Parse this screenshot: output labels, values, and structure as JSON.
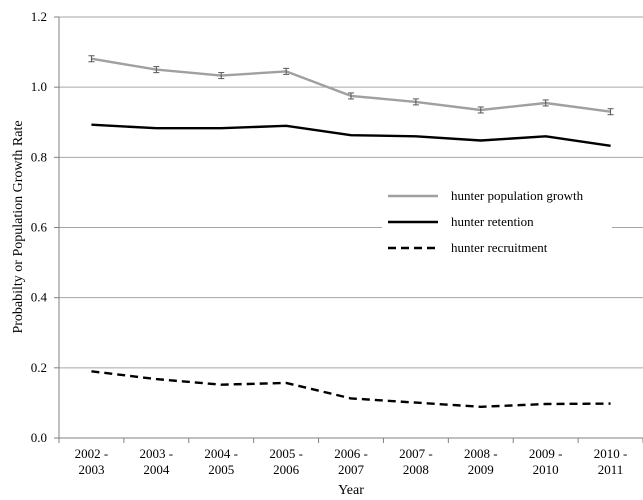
{
  "chart_data": {
    "type": "line",
    "categories": [
      [
        "2002 -",
        "2003"
      ],
      [
        "2003 -",
        "2004"
      ],
      [
        "2004 -",
        "2005"
      ],
      [
        "2005 -",
        "2006"
      ],
      [
        "2006 -",
        "2007"
      ],
      [
        "2007 -",
        "2008"
      ],
      [
        "2008 -",
        "2009"
      ],
      [
        "2009 -",
        "2010"
      ],
      [
        "2010 -",
        "2011"
      ]
    ],
    "xlabel": "Year",
    "ylabel": "Probabilty or Population Growth Rate",
    "ylim": [
      0,
      1.2
    ],
    "yticks": [
      "0.0",
      "0.2",
      "0.4",
      "0.6",
      "0.8",
      "1.0",
      "1.2"
    ],
    "grid": "horizontal",
    "legend_position": "right",
    "series": [
      {
        "name": "hunter population growth",
        "values": [
          1.081,
          1.05,
          1.033,
          1.045,
          0.975,
          0.958,
          0.935,
          0.955,
          0.93
        ],
        "color": "#a0a0a0",
        "dash": "solid",
        "error_bars": true
      },
      {
        "name": "hunter retention",
        "values": [
          0.893,
          0.883,
          0.883,
          0.89,
          0.863,
          0.86,
          0.848,
          0.86,
          0.833
        ],
        "color": "#000000",
        "dash": "solid",
        "error_bars": false
      },
      {
        "name": "hunter recruitment",
        "values": [
          0.19,
          0.168,
          0.152,
          0.157,
          0.113,
          0.101,
          0.089,
          0.097,
          0.098
        ],
        "color": "#000000",
        "dash": "dashed",
        "error_bars": false
      }
    ]
  }
}
